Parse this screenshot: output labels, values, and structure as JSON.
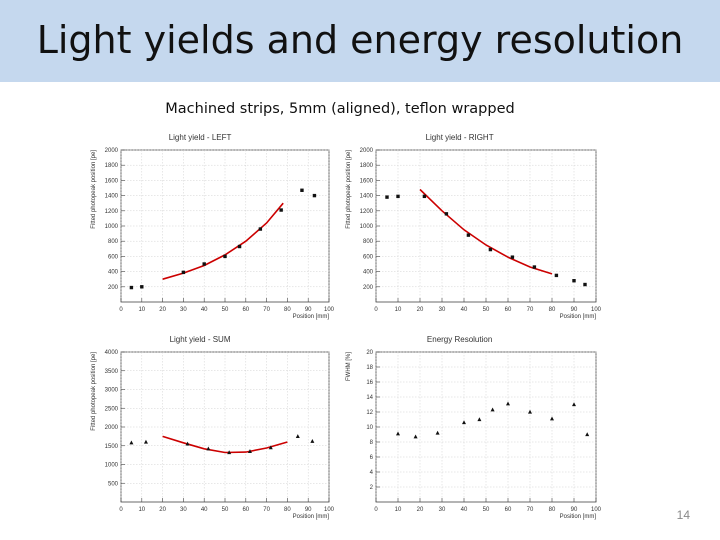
{
  "slide": {
    "title": "Light yields and energy resolution",
    "subtitle": "Machined strips, 5mm (aligned), teflon wrapped",
    "page_number": "14",
    "title_bar_color": "#c5d8ee"
  },
  "chart_data": [
    {
      "type": "scatter",
      "title": "Light yield - LEFT",
      "xlabel": "Position [mm]",
      "ylabel": "Fitted photopeak position [pe]",
      "xlim": [
        0,
        100
      ],
      "ylim": [
        0,
        2000
      ],
      "xticks": [
        0,
        10,
        20,
        30,
        40,
        50,
        60,
        70,
        80,
        90,
        100
      ],
      "yticks": [
        200,
        400,
        600,
        800,
        1000,
        1200,
        1400,
        1600,
        1800,
        2000
      ],
      "grid": true,
      "marker": "square",
      "points": [
        [
          5,
          190
        ],
        [
          10,
          200
        ],
        [
          30,
          390
        ],
        [
          40,
          500
        ],
        [
          50,
          600
        ],
        [
          57,
          730
        ],
        [
          67,
          960
        ],
        [
          77,
          1210
        ],
        [
          87,
          1470
        ],
        [
          93,
          1400
        ]
      ],
      "fit": {
        "x": [
          20,
          30,
          40,
          50,
          60,
          70,
          78
        ],
        "y": [
          300,
          380,
          480,
          620,
          800,
          1040,
          1300
        ],
        "color": "#cc0000"
      }
    },
    {
      "type": "scatter",
      "title": "Light yield - RIGHT",
      "xlabel": "Position [mm]",
      "ylabel": "Fitted photopeak position [pe]",
      "xlim": [
        0,
        100
      ],
      "ylim": [
        0,
        2000
      ],
      "xticks": [
        0,
        10,
        20,
        30,
        40,
        50,
        60,
        70,
        80,
        90,
        100
      ],
      "yticks": [
        200,
        400,
        600,
        800,
        1000,
        1200,
        1400,
        1600,
        1800,
        2000
      ],
      "grid": true,
      "marker": "square",
      "points": [
        [
          5,
          1380
        ],
        [
          10,
          1390
        ],
        [
          22,
          1390
        ],
        [
          32,
          1160
        ],
        [
          42,
          880
        ],
        [
          52,
          690
        ],
        [
          62,
          590
        ],
        [
          72,
          460
        ],
        [
          82,
          350
        ],
        [
          90,
          280
        ],
        [
          95,
          230
        ]
      ],
      "fit": {
        "x": [
          20,
          30,
          40,
          50,
          60,
          70,
          80
        ],
        "y": [
          1480,
          1200,
          950,
          750,
          590,
          460,
          370
        ],
        "color": "#cc0000"
      }
    },
    {
      "type": "scatter",
      "title": "Light yield - SUM",
      "xlabel": "Position [mm]",
      "ylabel": "Fitted photopeak position [pe]",
      "xlim": [
        0,
        100
      ],
      "ylim": [
        0,
        4000
      ],
      "xticks": [
        0,
        10,
        20,
        30,
        40,
        50,
        60,
        70,
        80,
        90,
        100
      ],
      "yticks": [
        500,
        1000,
        1500,
        2000,
        2500,
        3000,
        3500,
        4000
      ],
      "grid": true,
      "marker": "triangle",
      "points": [
        [
          5,
          1580
        ],
        [
          12,
          1600
        ],
        [
          32,
          1550
        ],
        [
          42,
          1420
        ],
        [
          52,
          1320
        ],
        [
          62,
          1350
        ],
        [
          72,
          1450
        ],
        [
          85,
          1750
        ],
        [
          92,
          1620
        ]
      ],
      "fit": {
        "x": [
          20,
          30,
          40,
          50,
          60,
          70,
          80
        ],
        "y": [
          1750,
          1580,
          1420,
          1320,
          1330,
          1440,
          1600
        ],
        "color": "#cc0000"
      }
    },
    {
      "type": "scatter",
      "title": "Energy Resolution",
      "xlabel": "Position [mm]",
      "ylabel": "FWHM [%]",
      "xlim": [
        0,
        100
      ],
      "ylim": [
        0,
        20
      ],
      "xticks": [
        0,
        10,
        20,
        30,
        40,
        50,
        60,
        70,
        80,
        90,
        100
      ],
      "yticks": [
        2,
        4,
        6,
        8,
        10,
        12,
        14,
        16,
        18,
        20
      ],
      "grid": true,
      "marker": "triangle",
      "points": [
        [
          10,
          9.1
        ],
        [
          18,
          8.7
        ],
        [
          28,
          9.2
        ],
        [
          40,
          10.6
        ],
        [
          47,
          11.0
        ],
        [
          53,
          12.3
        ],
        [
          60,
          13.1
        ],
        [
          70,
          12.0
        ],
        [
          80,
          11.1
        ],
        [
          90,
          13.0
        ],
        [
          96,
          9.0
        ]
      ],
      "fit": null
    }
  ]
}
